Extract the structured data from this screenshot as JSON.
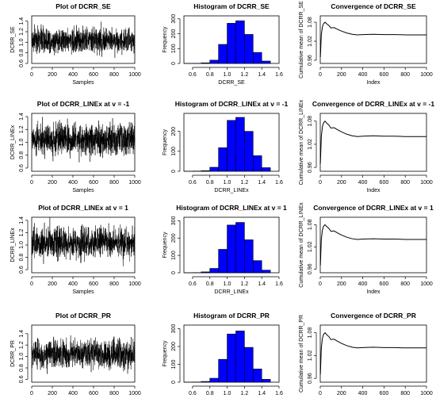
{
  "figure": {
    "description_rows": 4,
    "description_cols": 3
  },
  "chart_data": [
    {
      "type": "line",
      "title": "Plot of DCRR_SE",
      "xlabel": "Samples",
      "ylabel": "DCRR_SE",
      "xlim": [
        0,
        1000
      ],
      "ylim": [
        0.6,
        1.5
      ],
      "xticks": [
        0,
        200,
        400,
        600,
        800,
        1000
      ],
      "yticks": [
        0.6,
        0.8,
        1.0,
        1.2,
        1.4
      ],
      "ytick_labels": [
        "0.6",
        "0.8",
        "1.0",
        "1.2",
        "1.4"
      ],
      "trace": {
        "n": 1000,
        "mean": 1.04,
        "sd": 0.14,
        "min": 0.6,
        "max": 1.52
      },
      "grid": false
    },
    {
      "type": "bar",
      "title": "Histogram of DCRR_SE",
      "xlabel": "DCRR_SE",
      "ylabel": "Frequency",
      "xlim": [
        0.5,
        1.6
      ],
      "ylim": [
        0,
        320
      ],
      "xticks": [
        0.6,
        0.8,
        1.0,
        1.2,
        1.4,
        1.6
      ],
      "xtick_labels": [
        "0.6",
        "0.8",
        "1.0",
        "1.2",
        "1.4",
        "1.6"
      ],
      "yticks": [
        0,
        100,
        200,
        300
      ],
      "bin_edges": [
        0.5,
        0.6,
        0.7,
        0.8,
        0.9,
        1.0,
        1.1,
        1.2,
        1.3,
        1.4,
        1.5
      ],
      "values": [
        0,
        1,
        4,
        22,
        128,
        270,
        287,
        195,
        74,
        16,
        3
      ],
      "bar_color": "#0000ff",
      "grid": false
    },
    {
      "type": "line",
      "title": "Convergence of DCRR_SE",
      "xlabel": "Index",
      "ylabel": "Cumulative mean of DCRR_SE",
      "xlim": [
        0,
        1000
      ],
      "ylim": [
        0.95,
        1.1
      ],
      "xticks": [
        0,
        200,
        400,
        600,
        800,
        1000
      ],
      "yticks": [
        0.96,
        1.02,
        1.08
      ],
      "ytick_labels": [
        "0.96",
        "1.02",
        "1.08"
      ],
      "points": [
        [
          1,
          0.97
        ],
        [
          5,
          1.0
        ],
        [
          10,
          1.04
        ],
        [
          20,
          1.065
        ],
        [
          30,
          1.075
        ],
        [
          45,
          1.08
        ],
        [
          60,
          1.075
        ],
        [
          80,
          1.07
        ],
        [
          100,
          1.062
        ],
        [
          130,
          1.063
        ],
        [
          160,
          1.058
        ],
        [
          200,
          1.052
        ],
        [
          250,
          1.046
        ],
        [
          300,
          1.042
        ],
        [
          350,
          1.04
        ],
        [
          400,
          1.041
        ],
        [
          500,
          1.042
        ],
        [
          600,
          1.041
        ],
        [
          700,
          1.041
        ],
        [
          800,
          1.04
        ],
        [
          900,
          1.04
        ],
        [
          1000,
          1.04
        ]
      ],
      "grid": false
    },
    {
      "type": "line",
      "title": "Plot of DCRR_LINEx at v = -1",
      "xlabel": "Samples",
      "ylabel": "DCRR_LINEx",
      "xlim": [
        0,
        1000
      ],
      "ylim": [
        0.55,
        1.45
      ],
      "xticks": [
        0,
        200,
        400,
        600,
        800,
        1000
      ],
      "yticks": [
        0.6,
        0.8,
        1.0,
        1.2,
        1.4
      ],
      "ytick_labels": [
        "0.6",
        "0.8",
        "1.0",
        "1.2",
        "1.4"
      ],
      "trace": {
        "n": 1000,
        "mean": 1.05,
        "sd": 0.14,
        "min": 0.6,
        "max": 1.5
      },
      "grid": false
    },
    {
      "type": "bar",
      "title": "Histogram of DCRR_LINEx at v = -1",
      "xlabel": "DCRR_LINEx",
      "ylabel": "Frequency",
      "xlim": [
        0.5,
        1.6
      ],
      "ylim": [
        0,
        290
      ],
      "xticks": [
        0.6,
        0.8,
        1.0,
        1.2,
        1.4,
        1.6
      ],
      "xtick_labels": [
        "0.6",
        "0.8",
        "1.0",
        "1.2",
        "1.4",
        "1.6"
      ],
      "yticks": [
        0,
        100,
        200
      ],
      "bin_edges": [
        0.5,
        0.6,
        0.7,
        0.8,
        0.9,
        1.0,
        1.1,
        1.2,
        1.3,
        1.4,
        1.5
      ],
      "values": [
        0,
        1,
        3,
        20,
        118,
        255,
        270,
        200,
        78,
        18,
        3
      ],
      "bar_color": "#0000ff",
      "grid": false
    },
    {
      "type": "line",
      "title": "Convergence of DCRR_LINEx at v = -1",
      "xlabel": "Index",
      "ylabel": "Cumulative mean of DCRR_LINEx",
      "xlim": [
        0,
        1000
      ],
      "ylim": [
        0.95,
        1.1
      ],
      "xticks": [
        0,
        200,
        400,
        600,
        800,
        1000
      ],
      "yticks": [
        0.96,
        1.02,
        1.08
      ],
      "ytick_labels": [
        "0.96",
        "1.02",
        "1.08"
      ],
      "points": [
        [
          1,
          0.97
        ],
        [
          5,
          1.0
        ],
        [
          10,
          1.04
        ],
        [
          20,
          1.065
        ],
        [
          30,
          1.075
        ],
        [
          45,
          1.08
        ],
        [
          60,
          1.075
        ],
        [
          80,
          1.07
        ],
        [
          100,
          1.062
        ],
        [
          130,
          1.063
        ],
        [
          160,
          1.058
        ],
        [
          200,
          1.052
        ],
        [
          250,
          1.046
        ],
        [
          300,
          1.042
        ],
        [
          350,
          1.04
        ],
        [
          400,
          1.041
        ],
        [
          500,
          1.042
        ],
        [
          600,
          1.041
        ],
        [
          700,
          1.041
        ],
        [
          800,
          1.04
        ],
        [
          900,
          1.04
        ],
        [
          1000,
          1.04
        ]
      ],
      "grid": false
    },
    {
      "type": "line",
      "title": "Plot of DCRR_LINEx at v = 1",
      "xlabel": "Samples",
      "ylabel": "DCRR_LINEx",
      "xlim": [
        0,
        1000
      ],
      "ylim": [
        0.55,
        1.45
      ],
      "xticks": [
        0,
        200,
        400,
        600,
        800,
        1000
      ],
      "yticks": [
        0.6,
        0.8,
        1.0,
        1.2,
        1.4
      ],
      "ytick_labels": [
        "0.6",
        "0.8",
        "1.0",
        "1.2",
        "1.4"
      ],
      "trace": {
        "n": 1000,
        "mean": 1.03,
        "sd": 0.14,
        "min": 0.6,
        "max": 1.48
      },
      "grid": false
    },
    {
      "type": "bar",
      "title": "Histogram of DCRR_LINEx at v = 1",
      "xlabel": "DCRR_LINEx",
      "ylabel": "Frequency",
      "xlim": [
        0.5,
        1.6
      ],
      "ylim": [
        0,
        320
      ],
      "xticks": [
        0.6,
        0.8,
        1.0,
        1.2,
        1.4,
        1.6
      ],
      "xtick_labels": [
        "0.6",
        "0.8",
        "1.0",
        "1.2",
        "1.4",
        "1.6"
      ],
      "yticks": [
        0,
        100,
        200,
        300
      ],
      "bin_edges": [
        0.5,
        0.6,
        0.7,
        0.8,
        0.9,
        1.0,
        1.1,
        1.2,
        1.3,
        1.4,
        1.5
      ],
      "values": [
        0,
        1,
        5,
        25,
        135,
        275,
        290,
        190,
        70,
        15,
        3
      ],
      "bar_color": "#0000ff",
      "grid": false
    },
    {
      "type": "line",
      "title": "Convergence of DCRR_LINEx at v = 1",
      "xlabel": "Index",
      "ylabel": "Cumulative mean of DCRR_LINEx",
      "xlim": [
        0,
        1000
      ],
      "ylim": [
        0.95,
        1.1
      ],
      "xticks": [
        0,
        200,
        400,
        600,
        800,
        1000
      ],
      "yticks": [
        0.96,
        1.02,
        1.08
      ],
      "ytick_labels": [
        "0.96",
        "1.02",
        "1.08"
      ],
      "points": [
        [
          1,
          0.97
        ],
        [
          5,
          1.0
        ],
        [
          10,
          1.04
        ],
        [
          20,
          1.065
        ],
        [
          30,
          1.075
        ],
        [
          45,
          1.08
        ],
        [
          60,
          1.075
        ],
        [
          80,
          1.07
        ],
        [
          100,
          1.062
        ],
        [
          130,
          1.063
        ],
        [
          160,
          1.058
        ],
        [
          200,
          1.052
        ],
        [
          250,
          1.046
        ],
        [
          300,
          1.042
        ],
        [
          350,
          1.04
        ],
        [
          400,
          1.041
        ],
        [
          500,
          1.042
        ],
        [
          600,
          1.041
        ],
        [
          700,
          1.041
        ],
        [
          800,
          1.04
        ],
        [
          900,
          1.04
        ],
        [
          1000,
          1.04
        ]
      ],
      "grid": false
    },
    {
      "type": "line",
      "title": "Plot of DCRR_PR",
      "xlabel": "",
      "ylabel": "DCRR_PR",
      "xlim": [
        0,
        1000
      ],
      "ylim": [
        0.55,
        1.55
      ],
      "xticks": [
        0,
        200,
        400,
        600,
        800,
        1000
      ],
      "yticks": [
        0.6,
        0.8,
        1.0,
        1.2,
        1.4
      ],
      "ytick_labels": [
        "0.6",
        "0.8",
        "1.0",
        "1.2",
        "1.4"
      ],
      "trace": {
        "n": 1000,
        "mean": 1.04,
        "sd": 0.14,
        "min": 0.6,
        "max": 1.52
      },
      "grid": false
    },
    {
      "type": "bar",
      "title": "Histogram of DCRR_PR",
      "xlabel": "",
      "ylabel": "Frequency",
      "xlim": [
        0.5,
        1.6
      ],
      "ylim": [
        0,
        320
      ],
      "xticks": [
        0.6,
        0.8,
        1.0,
        1.2,
        1.4,
        1.6
      ],
      "xtick_labels": [
        "0.6",
        "0.8",
        "1.0",
        "1.2",
        "1.4",
        "1.6"
      ],
      "yticks": [
        0,
        100,
        200,
        300
      ],
      "bin_edges": [
        0.5,
        0.6,
        0.7,
        0.8,
        0.9,
        1.0,
        1.1,
        1.2,
        1.3,
        1.4,
        1.5
      ],
      "values": [
        0,
        1,
        4,
        22,
        128,
        270,
        287,
        195,
        74,
        16,
        3
      ],
      "bar_color": "#0000ff",
      "grid": false
    },
    {
      "type": "line",
      "title": "Convergence of DCRR_PR",
      "xlabel": "",
      "ylabel": "Cumulative mean of DCRR_PR",
      "xlim": [
        0,
        1000
      ],
      "ylim": [
        0.95,
        1.1
      ],
      "xticks": [
        0,
        200,
        400,
        600,
        800,
        1000
      ],
      "yticks": [
        0.96,
        1.02,
        1.08
      ],
      "ytick_labels": [
        "0.96",
        "1.02",
        "1.08"
      ],
      "points": [
        [
          1,
          0.97
        ],
        [
          5,
          1.0
        ],
        [
          10,
          1.04
        ],
        [
          20,
          1.065
        ],
        [
          30,
          1.075
        ],
        [
          45,
          1.08
        ],
        [
          60,
          1.075
        ],
        [
          80,
          1.07
        ],
        [
          100,
          1.062
        ],
        [
          130,
          1.063
        ],
        [
          160,
          1.058
        ],
        [
          200,
          1.052
        ],
        [
          250,
          1.046
        ],
        [
          300,
          1.042
        ],
        [
          350,
          1.04
        ],
        [
          400,
          1.041
        ],
        [
          500,
          1.042
        ],
        [
          600,
          1.041
        ],
        [
          700,
          1.041
        ],
        [
          800,
          1.04
        ],
        [
          900,
          1.04
        ],
        [
          1000,
          1.04
        ]
      ],
      "grid": false
    }
  ]
}
